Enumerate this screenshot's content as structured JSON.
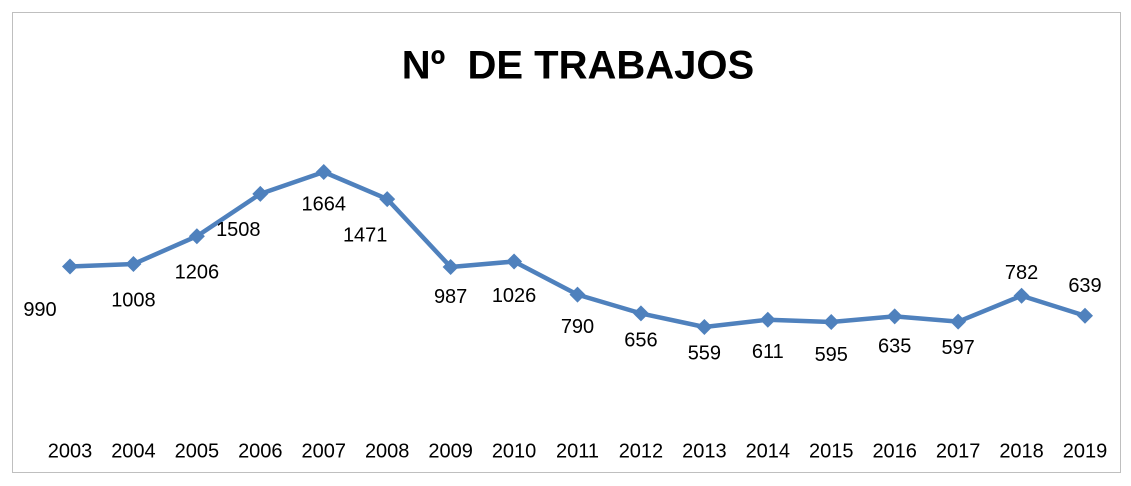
{
  "chart_data": {
    "type": "line",
    "title": "Nº  DE TRABAJOS",
    "categories": [
      "2003",
      "2004",
      "2005",
      "2006",
      "2007",
      "2008",
      "2009",
      "2010",
      "2011",
      "2012",
      "2013",
      "2014",
      "2015",
      "2016",
      "2017",
      "2018",
      "2019"
    ],
    "values": [
      990,
      1008,
      1206,
      1508,
      1664,
      1471,
      987,
      1026,
      790,
      656,
      559,
      611,
      595,
      635,
      597,
      782,
      639
    ],
    "color": "#4f81bd"
  }
}
